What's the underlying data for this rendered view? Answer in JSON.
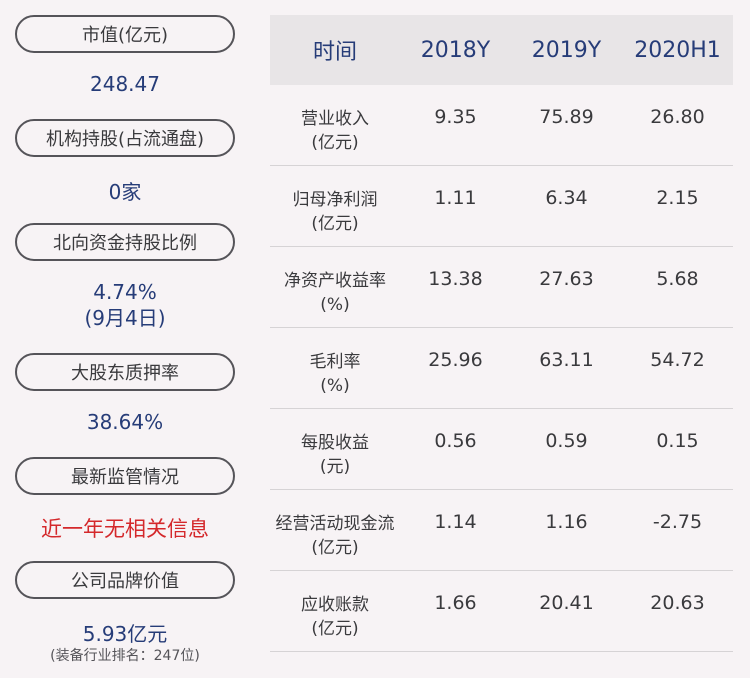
{
  "left": {
    "items": [
      {
        "label": "市值(亿元)",
        "value": "248.47"
      },
      {
        "label": "机构持股(占流通盘)",
        "value": "0家"
      },
      {
        "label": "北向资金持股比例",
        "value": "4.74%",
        "value2": "(9月4日)"
      },
      {
        "label": "大股东质押率",
        "value": "38.64%"
      },
      {
        "label": "最新监管情况",
        "value": "近一年无相关信息"
      },
      {
        "label": "公司品牌价值",
        "value": "5.93亿元",
        "note": "(装备行业排名：247位)"
      }
    ]
  },
  "table": {
    "headers": [
      "时间",
      "2018Y",
      "2019Y",
      "2020H1"
    ],
    "rows": [
      {
        "label": "营业收入",
        "unit": "(亿元)",
        "values": [
          "9.35",
          "75.89",
          "26.80"
        ]
      },
      {
        "label": "归母净利润",
        "unit": "(亿元)",
        "values": [
          "1.11",
          "6.34",
          "2.15"
        ]
      },
      {
        "label": "净资产收益率",
        "unit": "(%)",
        "values": [
          "13.38",
          "27.63",
          "5.68"
        ]
      },
      {
        "label": "毛利率",
        "unit": "(%)",
        "values": [
          "25.96",
          "63.11",
          "54.72"
        ]
      },
      {
        "label": "每股收益",
        "unit": "(元)",
        "values": [
          "0.56",
          "0.59",
          "0.15"
        ]
      },
      {
        "label": "经营活动现金流",
        "unit": "(亿元)",
        "values": [
          "1.14",
          "1.16",
          "-2.75"
        ]
      },
      {
        "label": "应收账款",
        "unit": "(亿元)",
        "values": [
          "1.66",
          "20.41",
          "20.63"
        ]
      }
    ]
  },
  "colors": {
    "accent": "#263c78",
    "alert": "#d4282b",
    "background": "#f7f3f5",
    "header_bg": "#e8e5e7"
  }
}
